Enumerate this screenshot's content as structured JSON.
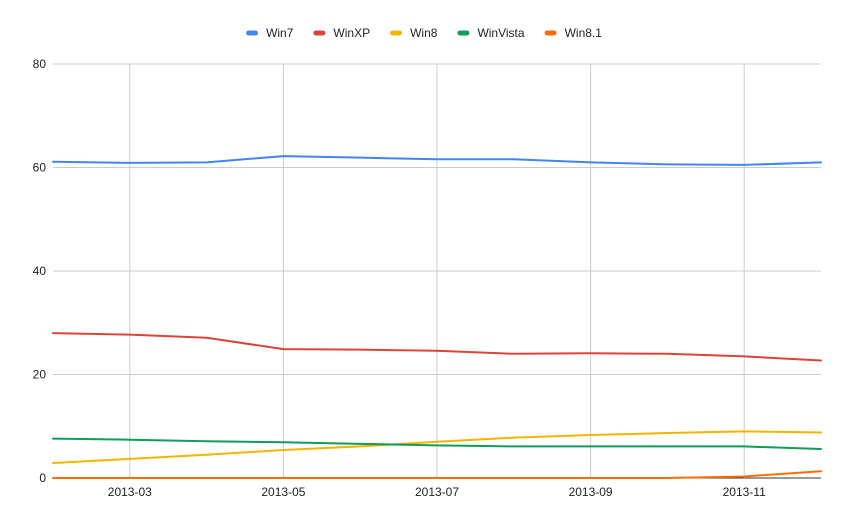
{
  "chart_data": {
    "type": "line",
    "title": "",
    "xlabel": "",
    "ylabel": "",
    "ylim": [
      0,
      80
    ],
    "yticks": [
      0,
      20,
      40,
      60,
      80
    ],
    "grid": true,
    "legend_position": "top",
    "x": [
      "2013-02",
      "2013-03",
      "2013-04",
      "2013-05",
      "2013-06",
      "2013-07",
      "2013-08",
      "2013-09",
      "2013-10",
      "2013-11",
      "2013-12"
    ],
    "xtick_labels": [
      "2013-03",
      "2013-05",
      "2013-07",
      "2013-09",
      "2013-11"
    ],
    "series": [
      {
        "name": "Win7",
        "color": "#4285f4",
        "values": [
          61.1,
          60.9,
          61.0,
          62.2,
          61.9,
          61.6,
          61.6,
          61.0,
          60.6,
          60.5,
          61.0
        ]
      },
      {
        "name": "WinXP",
        "color": "#db4437",
        "values": [
          28.0,
          27.7,
          27.1,
          24.9,
          24.8,
          24.6,
          24.0,
          24.1,
          24.0,
          23.5,
          22.7
        ]
      },
      {
        "name": "Win8",
        "color": "#f4b400",
        "values": [
          2.9,
          3.7,
          4.5,
          5.4,
          6.1,
          7.0,
          7.8,
          8.3,
          8.7,
          9.0,
          8.8
        ]
      },
      {
        "name": "WinVista",
        "color": "#0f9d58",
        "values": [
          7.6,
          7.4,
          7.1,
          6.9,
          6.6,
          6.3,
          6.1,
          6.1,
          6.1,
          6.1,
          5.6
        ]
      },
      {
        "name": "Win8.1",
        "color": "#ff6d00",
        "values": [
          0,
          0,
          0,
          0,
          0,
          0,
          0,
          0,
          0,
          0.3,
          1.3
        ]
      }
    ]
  }
}
